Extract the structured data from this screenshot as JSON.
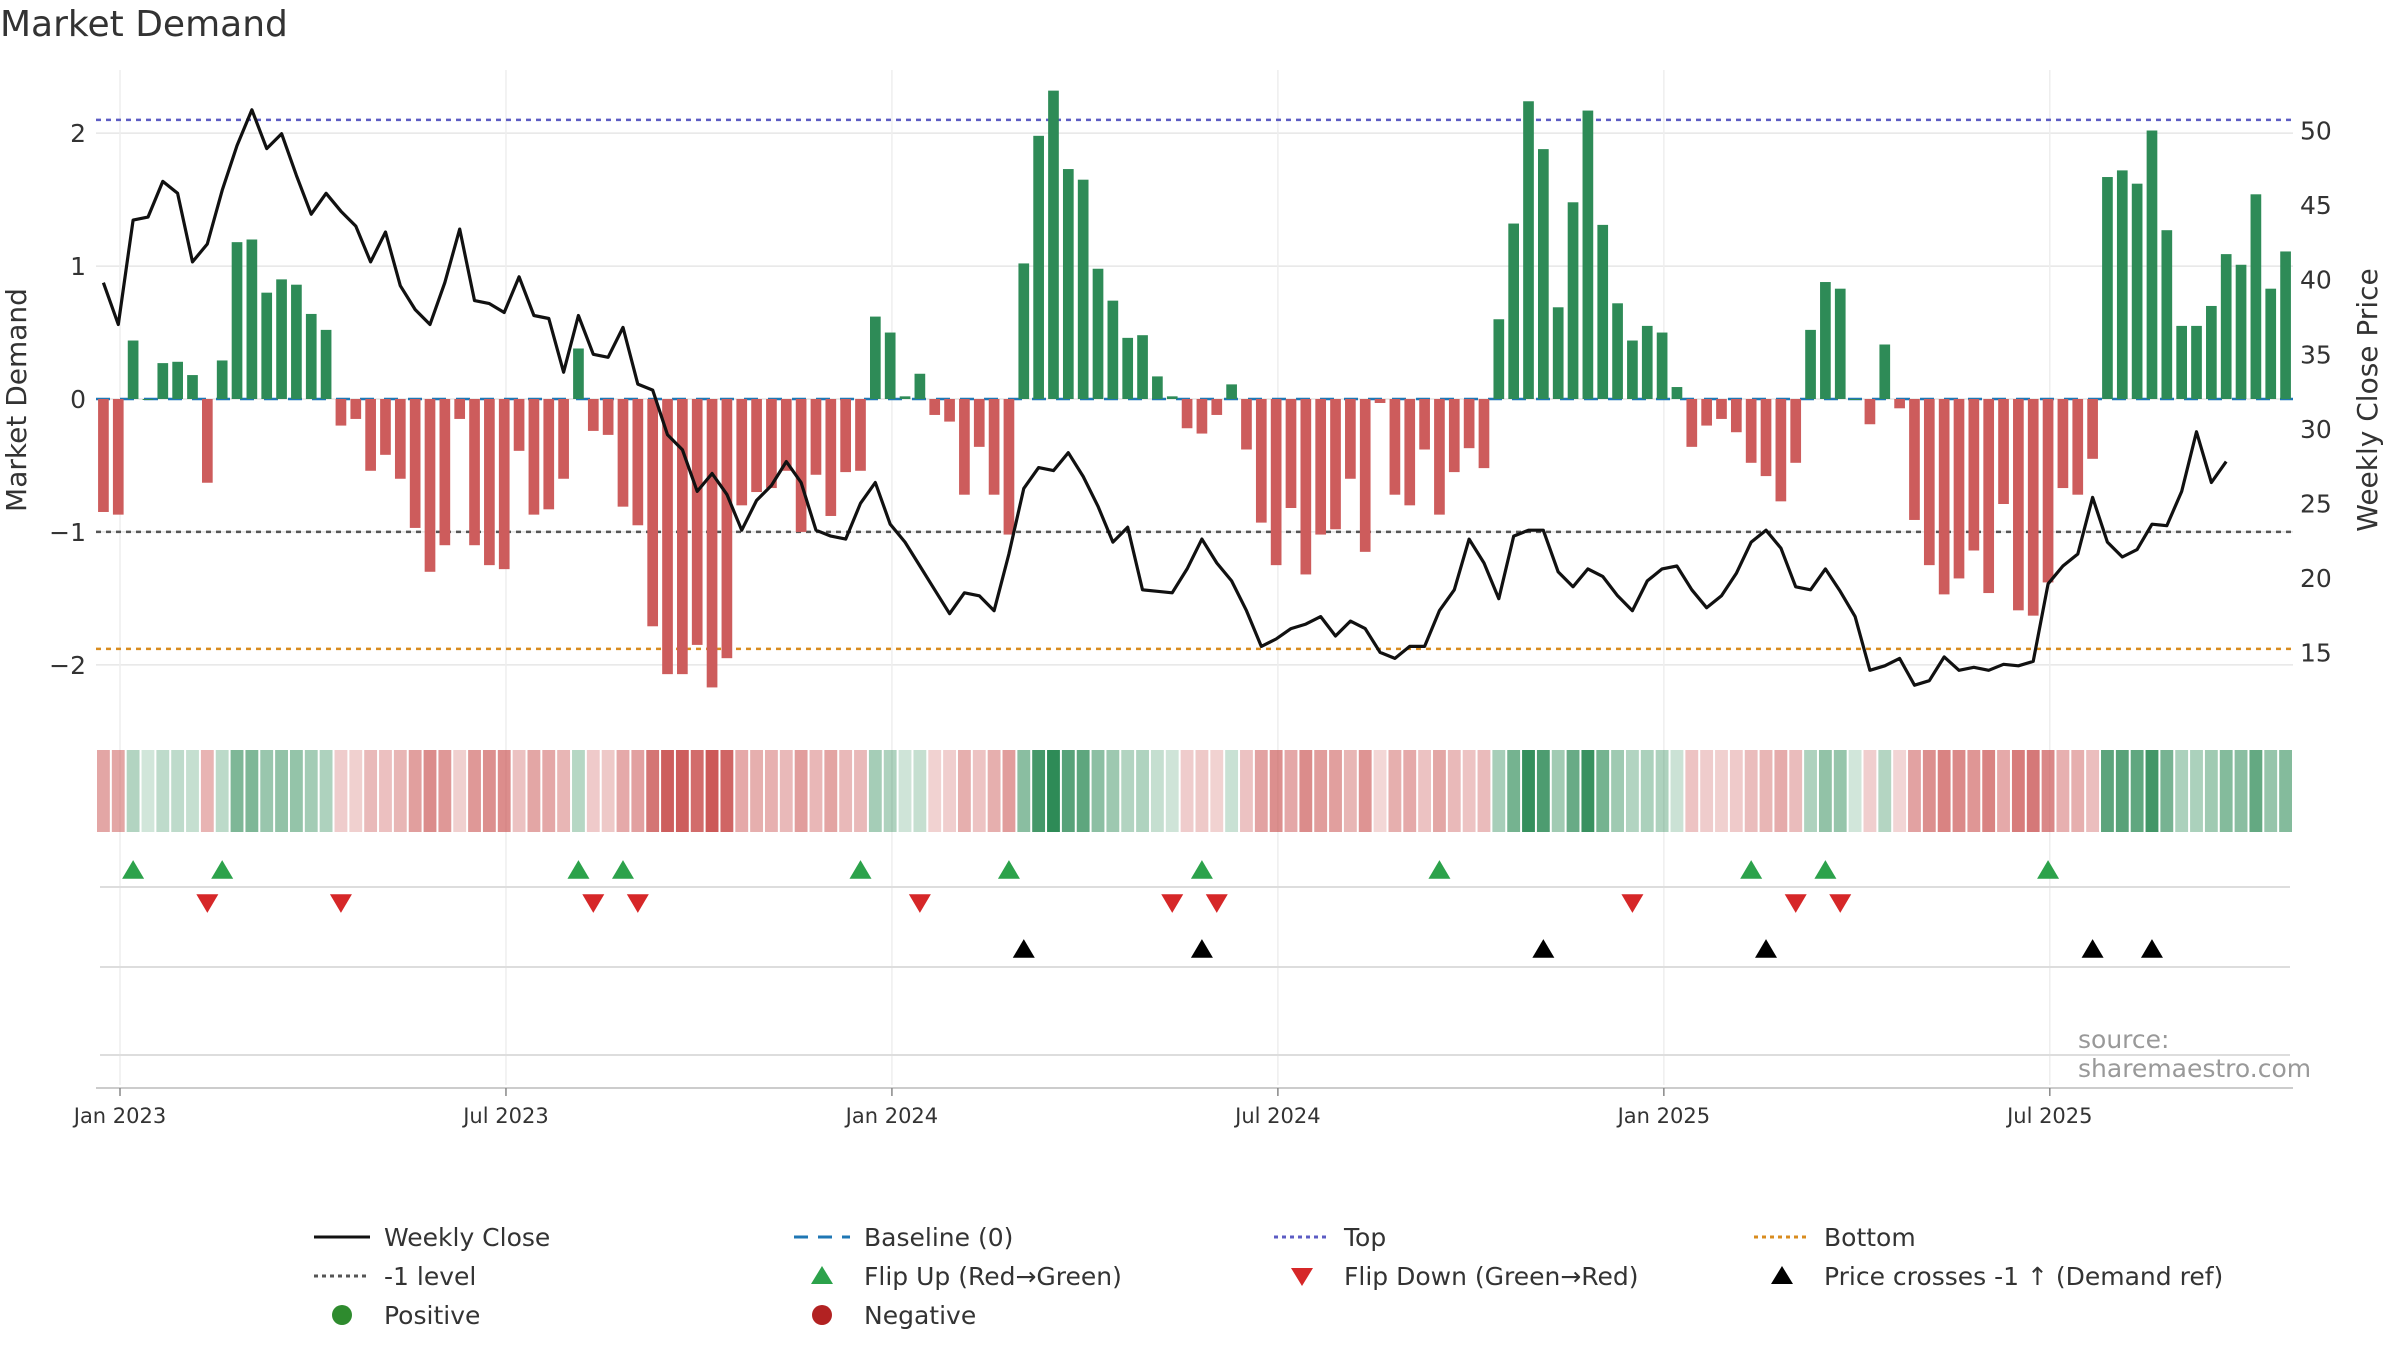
{
  "chart_data": {
    "type": "bar",
    "title": "Market Demand",
    "ylabel": "Market Demand",
    "y2label": "Weekly Close Price",
    "ylim": [
      -2.4,
      2.4
    ],
    "y2lim": [
      10.6,
      53.4
    ],
    "y_ticks": [
      "2",
      "1",
      "0",
      "−1",
      "−2"
    ],
    "y_tick_values": [
      2,
      1,
      0,
      -1,
      -2
    ],
    "y2_ticks": [
      "50",
      "45",
      "40",
      "35",
      "30",
      "25",
      "20",
      "15"
    ],
    "y2_tick_values": [
      50,
      45,
      40,
      35,
      30,
      25,
      20,
      15
    ],
    "x_ticks": [
      "Jan 2023",
      "Jul 2023",
      "Jan 2024",
      "Jul 2024",
      "Jan 2025",
      "Jul 2025"
    ],
    "x_tick_week_index": [
      0,
      26,
      52,
      78,
      104,
      130
    ],
    "reference_lines": {
      "top": 2.1,
      "minus_one": -1.0,
      "bottom": -1.88,
      "baseline": 0
    },
    "demand": [
      -0.85,
      -0.87,
      0.44,
      0.0,
      0.27,
      0.28,
      0.18,
      -0.63,
      0.29,
      1.18,
      1.2,
      0.8,
      0.9,
      0.86,
      0.64,
      0.52,
      -0.2,
      -0.15,
      -0.54,
      -0.42,
      -0.6,
      -0.97,
      -1.3,
      -1.1,
      -0.15,
      -1.1,
      -1.25,
      -1.28,
      -0.39,
      -0.87,
      -0.83,
      -0.6,
      0.38,
      -0.24,
      -0.27,
      -0.81,
      -0.95,
      -1.71,
      -2.07,
      -2.07,
      -1.85,
      -2.17,
      -1.95,
      -0.8,
      -0.7,
      -0.67,
      -0.54,
      -1.0,
      -0.57,
      -0.88,
      -0.55,
      -0.54,
      0.62,
      0.5,
      0.02,
      0.19,
      -0.12,
      -0.17,
      -0.72,
      -0.36,
      -0.72,
      -1.02,
      1.02,
      1.98,
      2.32,
      1.73,
      1.65,
      0.98,
      0.74,
      0.46,
      0.48,
      0.17,
      0.02,
      -0.22,
      -0.26,
      -0.12,
      0.11,
      -0.38,
      -0.93,
      -1.25,
      -0.82,
      -1.32,
      -1.02,
      -0.98,
      -0.6,
      -1.15,
      -0.03,
      -0.72,
      -0.8,
      -0.38,
      -0.87,
      -0.55,
      -0.37,
      -0.52,
      0.6,
      1.32,
      2.24,
      1.88,
      0.69,
      1.48,
      2.17,
      1.31,
      0.72,
      0.44,
      0.55,
      0.5,
      0.09,
      -0.36,
      -0.2,
      -0.15,
      -0.25,
      -0.48,
      -0.58,
      -0.77,
      -0.48,
      0.52,
      0.88,
      0.83,
      0.0,
      -0.19,
      0.41,
      -0.07,
      -0.91,
      -1.25,
      -1.47,
      -1.35,
      -1.14,
      -1.46,
      -0.79,
      -1.59,
      -1.63,
      -1.38,
      -0.67,
      -0.72,
      -0.45,
      1.67,
      1.72,
      1.62,
      2.02,
      1.27,
      0.55,
      0.55,
      0.7,
      1.09,
      1.01,
      1.54,
      0.83,
      1.11
    ],
    "weekly_close": [
      39.8,
      37.0,
      44.0,
      44.2,
      46.6,
      45.8,
      41.2,
      42.4,
      46.0,
      49.0,
      51.4,
      48.8,
      49.8,
      47.0,
      44.4,
      45.8,
      44.6,
      43.6,
      41.2,
      43.2,
      39.6,
      38.0,
      37.0,
      39.8,
      43.4,
      38.6,
      38.4,
      37.8,
      40.2,
      37.6,
      37.4,
      33.8,
      37.6,
      35.0,
      34.8,
      36.8,
      33.0,
      32.6,
      29.6,
      28.6,
      25.8,
      27.0,
      25.6,
      23.2,
      25.2,
      26.2,
      27.8,
      26.4,
      23.2,
      22.8,
      22.6,
      25.0,
      26.4,
      23.6,
      22.4,
      20.8,
      19.2,
      17.6,
      19.0,
      18.8,
      17.8,
      21.6,
      26.0,
      27.4,
      27.2,
      28.4,
      26.8,
      24.8,
      22.4,
      23.4,
      19.2,
      19.1,
      19.0,
      20.6,
      22.6,
      21.0,
      19.8,
      17.8,
      15.4,
      15.9,
      16.6,
      16.9,
      17.4,
      16.1,
      17.1,
      16.6,
      15.0,
      14.6,
      15.4,
      15.4,
      17.8,
      19.2,
      22.6,
      21.0,
      18.6,
      22.8,
      23.2,
      23.2,
      20.4,
      19.4,
      20.6,
      20.1,
      18.8,
      17.8,
      19.8,
      20.6,
      20.8,
      19.2,
      18.0,
      18.8,
      20.3,
      22.4,
      23.2,
      22.0,
      19.4,
      19.2,
      20.6,
      19.1,
      17.4,
      13.8,
      14.1,
      14.6,
      12.8,
      13.1,
      14.7,
      13.8,
      14.0,
      13.8,
      14.2,
      14.1,
      14.4,
      19.6,
      20.8,
      21.6,
      25.4,
      22.4,
      21.4,
      21.9,
      23.6,
      23.5,
      25.8,
      29.8,
      26.4,
      27.8
    ],
    "trend_strip": {
      "positive_color": "#2e8b57",
      "negative_color": "#c9504f"
    },
    "flip_up_weeks": [
      2,
      8,
      32,
      35,
      51,
      61,
      74,
      90,
      111,
      116,
      131
    ],
    "flip_down_weeks": [
      7,
      16,
      33,
      36,
      55,
      72,
      75,
      103,
      114,
      117
    ],
    "price_cross_weeks": [
      62,
      74,
      97,
      112,
      134,
      138
    ],
    "source_text": "source: sharemaestro.com",
    "legend": [
      {
        "label": "Weekly Close",
        "kind": "line",
        "color": "#111111",
        "dash": ""
      },
      {
        "label": "Baseline (0)",
        "kind": "line",
        "color": "#1f77b4",
        "dash": "14,10"
      },
      {
        "label": "Top",
        "kind": "line",
        "color": "#5c5cc4",
        "dash": "4,4"
      },
      {
        "label": "Bottom",
        "kind": "line",
        "color": "#d98c1f",
        "dash": "4,4"
      },
      {
        "label": "-1 level",
        "kind": "line",
        "color": "#555555",
        "dash": "4,4"
      },
      {
        "label": "Flip Up (Red→Green)",
        "kind": "tri-up",
        "color": "#2ca24b"
      },
      {
        "label": "Flip Down (Green→Red)",
        "kind": "tri-down",
        "color": "#d62728"
      },
      {
        "label": "Price crosses -1 ↑ (Demand ref)",
        "kind": "tri-up",
        "color": "#000000"
      },
      {
        "label": "Positive",
        "kind": "dot",
        "color": "#2e8b2e"
      },
      {
        "label": "Negative",
        "kind": "dot",
        "color": "#b22222"
      }
    ],
    "colors": {
      "bar_positive": "#2e8b57",
      "bar_negative": "#cd5c5c",
      "close_line": "#111111",
      "baseline": "#1f77b4",
      "top": "#5c5cc4",
      "bottom": "#d98c1f",
      "minus_one": "#555555",
      "grid": "#e6e6e6"
    }
  }
}
